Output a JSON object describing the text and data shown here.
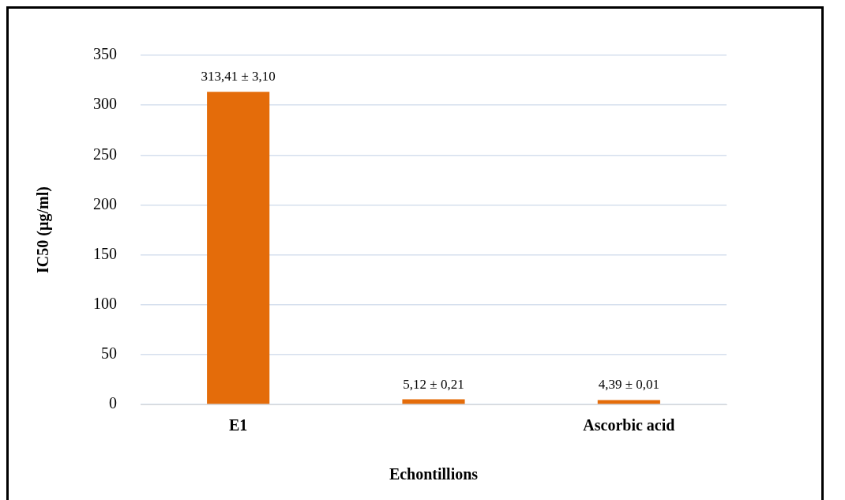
{
  "chart_data": {
    "type": "bar",
    "xlabel": "Echontillions",
    "ylabel": "IC50 (µg/ml)",
    "categories": [
      "E1",
      null,
      "Ascorbic acid"
    ],
    "values": [
      313.41,
      5.12,
      4.39
    ],
    "value_labels": [
      "313,41 ± 3,10",
      "5,12 ± 0,21",
      "4,39 ± 0,01"
    ],
    "color": "#e46c0a",
    "ylim": [
      0,
      350
    ],
    "yticks": [
      0,
      50,
      100,
      150,
      200,
      250,
      300,
      350
    ],
    "grid": "y"
  }
}
